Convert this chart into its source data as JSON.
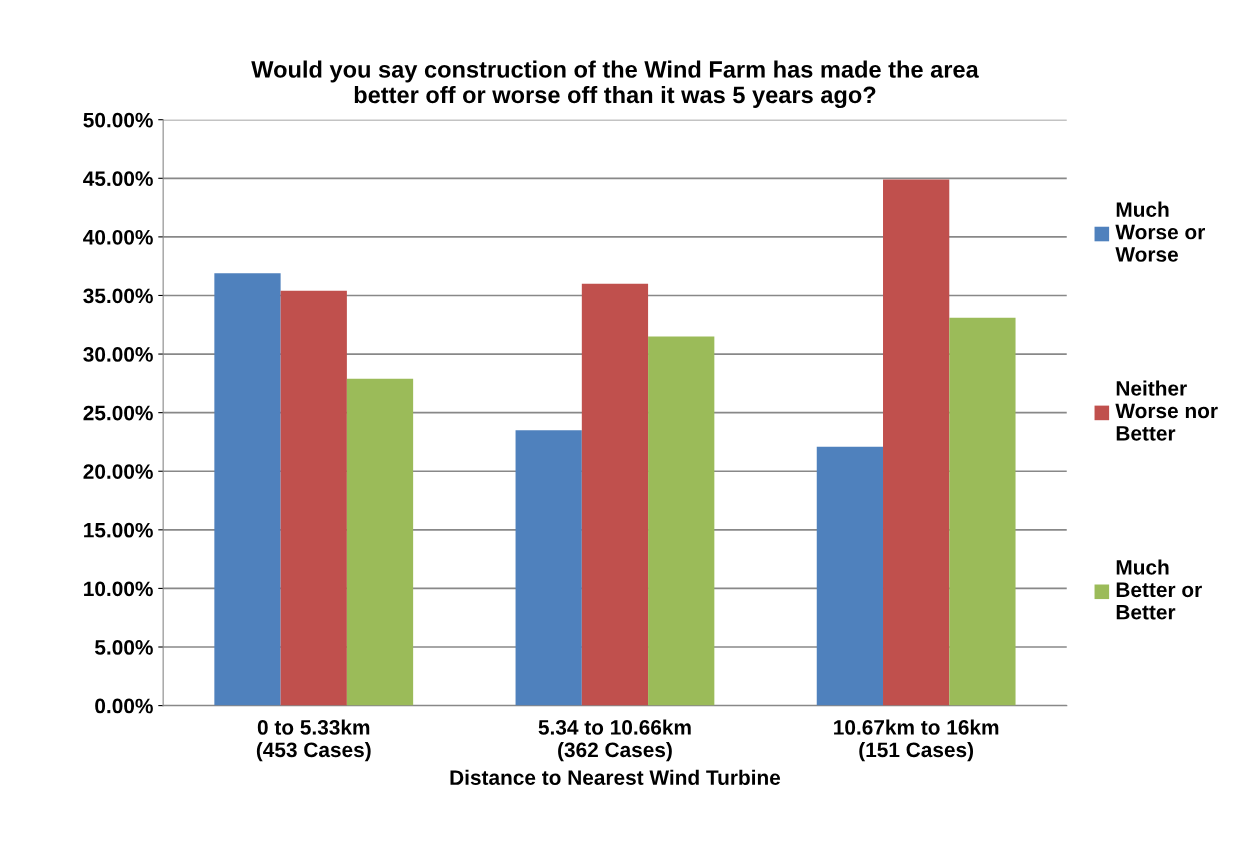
{
  "chart_data": {
    "type": "bar",
    "title": "Would you say construction of the Wind Farm has made the area\nbetter off or worse off than it was 5 years ago?",
    "xlabel": "Distance to Nearest Wind Turbine",
    "categories": [
      "0 to 5.33km\n(453 Cases)",
      "5.34 to 10.66km\n(362 Cases)",
      "10.67km to 16km\n(151 Cases)"
    ],
    "series": [
      {
        "name": "Much\nWorse or\nWorse",
        "color": "#4f81bd",
        "values": [
          36.9,
          23.5,
          22.1
        ]
      },
      {
        "name": "Neither\nWorse nor\nBetter",
        "color": "#c0504d",
        "values": [
          35.4,
          36.0,
          44.9
        ]
      },
      {
        "name": "Much\nBetter or\nBetter",
        "color": "#9bbb59",
        "values": [
          27.9,
          31.5,
          33.1
        ]
      }
    ],
    "ylim": [
      0,
      50
    ],
    "yticks": [
      {
        "value": 0,
        "label": "0.00%"
      },
      {
        "value": 5,
        "label": "5.00%"
      },
      {
        "value": 10,
        "label": "10.00%"
      },
      {
        "value": 15,
        "label": "15.00%"
      },
      {
        "value": 20,
        "label": "20.00%"
      },
      {
        "value": 25,
        "label": "25.00%"
      },
      {
        "value": 30,
        "label": "30.00%"
      },
      {
        "value": 35,
        "label": "35.00%"
      },
      {
        "value": 40,
        "label": "40.00%"
      },
      {
        "value": 45,
        "label": "45.00%"
      },
      {
        "value": 50,
        "label": "50.00%"
      }
    ],
    "grid": "y",
    "legend": "right"
  }
}
